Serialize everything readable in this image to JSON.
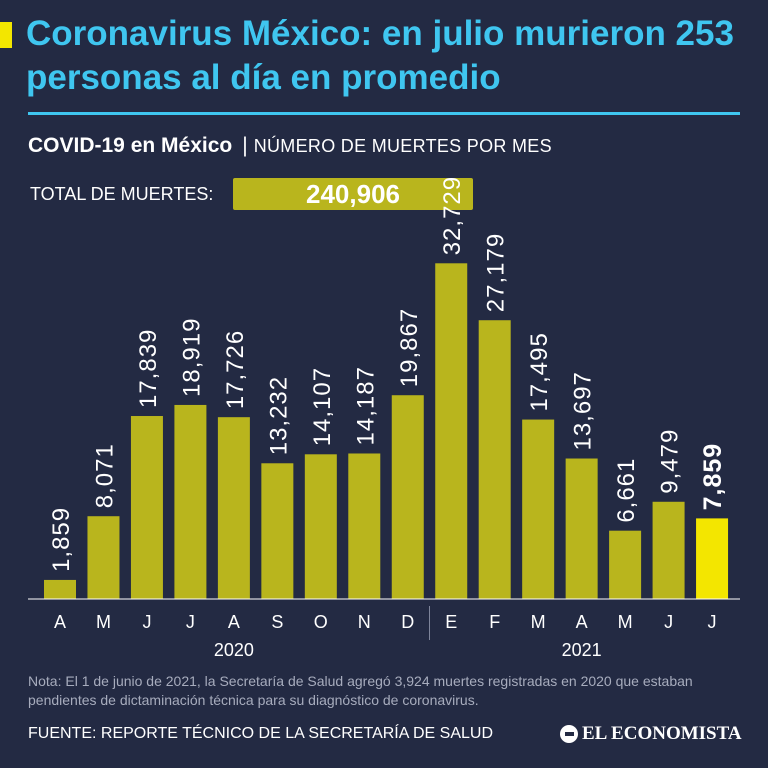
{
  "headline": "Coronavirus México: en julio murieron 253 personas al día en promedio",
  "subtitle": {
    "bold": "COVID-19 en México",
    "separator": "|",
    "light": "NÚMERO DE MUERTES POR MES"
  },
  "total": {
    "label": "TOTAL DE MUERTES:",
    "value": "240,906"
  },
  "colors": {
    "background": "#232a43",
    "headline": "#3fc6f0",
    "bar": "#b9b51d",
    "highlight": "#f3e600"
  },
  "chart_data": {
    "type": "bar",
    "title": "COVID-19 en México | NÚMERO DE MUERTES POR MES",
    "categories": [
      "A",
      "M",
      "J",
      "J",
      "A",
      "S",
      "O",
      "N",
      "D",
      "E",
      "F",
      "M",
      "A",
      "M",
      "J",
      "J"
    ],
    "values": [
      1859,
      8071,
      17839,
      18919,
      17726,
      13232,
      14107,
      14187,
      19867,
      32729,
      27179,
      17495,
      13697,
      6661,
      9479,
      7859
    ],
    "labels": [
      "1,859",
      "8,071",
      "17,839",
      "18,919",
      "17,726",
      "13,232",
      "14,107",
      "14,187",
      "19,867",
      "32,729",
      "27,179",
      "17,495",
      "13,697",
      "6,661",
      "9,479",
      "7,859"
    ],
    "highlight_index": 15,
    "years": [
      {
        "label": "2020",
        "start": 0,
        "end": 8
      },
      {
        "label": "2021",
        "start": 9,
        "end": 15
      }
    ],
    "ylim": [
      0,
      35000
    ],
    "xlabel": "",
    "ylabel": ""
  },
  "note": "Nota: El 1 de junio de 2021, la Secretaría de Salud agregó 3,924 muertes registradas en 2020 que estaban pendientes de dictaminación técnica para su diagnóstico de coronavirus.",
  "source": "FUENTE: REPORTE TÉCNICO DE LA SECRETARÍA DE SALUD",
  "brand": "EL ECONOMISTA"
}
